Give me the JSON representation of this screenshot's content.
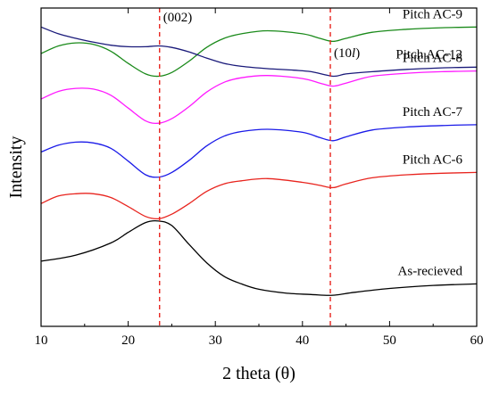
{
  "chart_data": {
    "type": "line",
    "xlabel": "2 theta (θ)",
    "ylabel": "Intensity",
    "xlim": [
      10,
      60
    ],
    "xticks": [
      "10",
      "20",
      "30",
      "40",
      "50",
      "60"
    ],
    "y_tick_labels": false,
    "grid": false,
    "reference_lines": [
      {
        "x": 23.6,
        "label_parts": [
          "(002)"
        ],
        "color": "#e8241e",
        "style": "dashed"
      },
      {
        "x": 43.2,
        "label_parts": [
          "(10",
          "l",
          ")"
        ],
        "color": "#e8241e",
        "style": "dashed"
      }
    ],
    "series": [
      {
        "name": "As-recieved",
        "color": "#000000",
        "points": [
          [
            10,
            86
          ],
          [
            14,
            94
          ],
          [
            18,
            110
          ],
          [
            20,
            124
          ],
          [
            22,
            137
          ],
          [
            23.5,
            139
          ],
          [
            25,
            133
          ],
          [
            27,
            108
          ],
          [
            29,
            84
          ],
          [
            31,
            66
          ],
          [
            33,
            56
          ],
          [
            35,
            49
          ],
          [
            38,
            44
          ],
          [
            41,
            42
          ],
          [
            43.5,
            41
          ],
          [
            46,
            45
          ],
          [
            50,
            50
          ],
          [
            55,
            54
          ],
          [
            60,
            56
          ]
        ]
      },
      {
        "name": "Pitch AC-6",
        "color": "#e8241e",
        "points": [
          [
            10,
            162
          ],
          [
            12,
            172
          ],
          [
            14,
            175
          ],
          [
            16,
            175
          ],
          [
            18,
            170
          ],
          [
            20,
            158
          ],
          [
            22,
            145
          ],
          [
            23.5,
            142
          ],
          [
            25,
            148
          ],
          [
            27,
            162
          ],
          [
            29,
            178
          ],
          [
            31,
            188
          ],
          [
            33,
            192
          ],
          [
            36,
            195
          ],
          [
            40,
            190
          ],
          [
            42,
            186
          ],
          [
            43.5,
            183
          ],
          [
            45,
            188
          ],
          [
            48,
            196
          ],
          [
            52,
            200
          ],
          [
            56,
            202
          ],
          [
            60,
            203
          ]
        ]
      },
      {
        "name": "Pitch AC-7",
        "color": "#1a1ae8",
        "points": [
          [
            10,
            230
          ],
          [
            12,
            239
          ],
          [
            14,
            243
          ],
          [
            16,
            242
          ],
          [
            18,
            235
          ],
          [
            20,
            218
          ],
          [
            22,
            200
          ],
          [
            23.5,
            197
          ],
          [
            25,
            203
          ],
          [
            27,
            219
          ],
          [
            29,
            238
          ],
          [
            31,
            251
          ],
          [
            33,
            257
          ],
          [
            36,
            260
          ],
          [
            40,
            256
          ],
          [
            42,
            249
          ],
          [
            43.5,
            245
          ],
          [
            45,
            250
          ],
          [
            48,
            259
          ],
          [
            52,
            263
          ],
          [
            56,
            265
          ],
          [
            60,
            266
          ]
        ]
      },
      {
        "name": "Pitch AC-8",
        "color": "#ff1aff",
        "points": [
          [
            10,
            300
          ],
          [
            12,
            310
          ],
          [
            14,
            314
          ],
          [
            16,
            313
          ],
          [
            18,
            305
          ],
          [
            20,
            288
          ],
          [
            22,
            271
          ],
          [
            23.5,
            268
          ],
          [
            25,
            274
          ],
          [
            27,
            290
          ],
          [
            29,
            309
          ],
          [
            31,
            322
          ],
          [
            33,
            328
          ],
          [
            36,
            331
          ],
          [
            40,
            327
          ],
          [
            42,
            321
          ],
          [
            43.5,
            317
          ],
          [
            45,
            321
          ],
          [
            48,
            330
          ],
          [
            52,
            334
          ],
          [
            56,
            336
          ],
          [
            60,
            337
          ]
        ]
      },
      {
        "name": "Pitch AC-9",
        "color": "#1a8a1a",
        "points": [
          [
            10,
            360
          ],
          [
            12,
            370
          ],
          [
            14,
            374
          ],
          [
            16,
            372
          ],
          [
            18,
            363
          ],
          [
            20,
            347
          ],
          [
            22,
            333
          ],
          [
            23.5,
            330
          ],
          [
            25,
            335
          ],
          [
            27,
            350
          ],
          [
            29,
            368
          ],
          [
            31,
            380
          ],
          [
            33,
            386
          ],
          [
            36,
            390
          ],
          [
            40,
            386
          ],
          [
            42,
            380
          ],
          [
            43.5,
            376
          ],
          [
            45,
            380
          ],
          [
            48,
            388
          ],
          [
            52,
            392
          ],
          [
            56,
            394
          ],
          [
            60,
            395
          ]
        ]
      },
      {
        "name": "Pitch AC-12",
        "color": "#1a1a7a",
        "points": [
          [
            10,
            395
          ],
          [
            12,
            386
          ],
          [
            14,
            380
          ],
          [
            16,
            375
          ],
          [
            18,
            371
          ],
          [
            20,
            369
          ],
          [
            22,
            369
          ],
          [
            23.5,
            370
          ],
          [
            25,
            368
          ],
          [
            27,
            362
          ],
          [
            29,
            354
          ],
          [
            31,
            347
          ],
          [
            33,
            343
          ],
          [
            36,
            340
          ],
          [
            39,
            338
          ],
          [
            41,
            336
          ],
          [
            43.5,
            330
          ],
          [
            45,
            333
          ],
          [
            48,
            336
          ],
          [
            52,
            339
          ],
          [
            56,
            341
          ],
          [
            60,
            342
          ]
        ]
      }
    ]
  }
}
